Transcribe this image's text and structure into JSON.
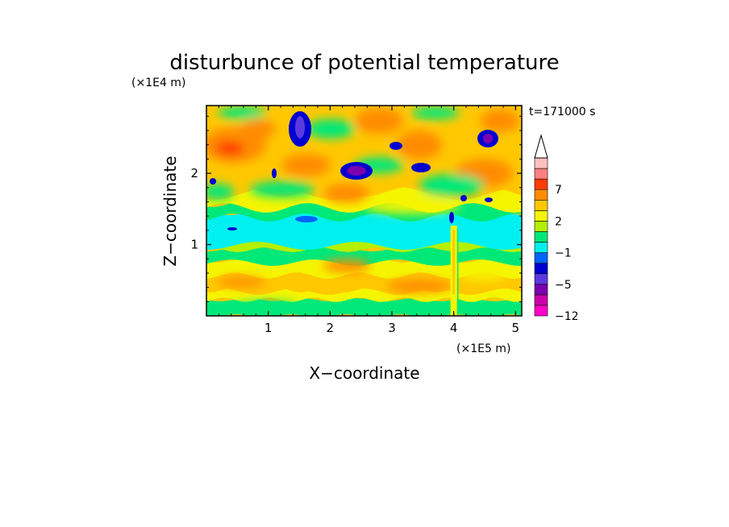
{
  "chart_data": {
    "type": "heatmap",
    "title": "disturbunce of potential temperature",
    "time_label": "t=171000 s",
    "xlabel": "X−coordinate",
    "ylabel": "Z−coordinate",
    "x_unit": "(×1E5 m)",
    "y_unit": "(×1E4 m)",
    "xlim": [
      0.0,
      5.1
    ],
    "ylim": [
      0.0,
      2.95
    ],
    "x_ticks": [
      1,
      2,
      3,
      4,
      5
    ],
    "y_ticks": [
      1,
      2
    ],
    "x_tick_labels": [
      "1",
      "2",
      "3",
      "4",
      "5"
    ],
    "y_tick_labels": [
      "1",
      "2"
    ],
    "colorbar": {
      "levels": [
        -12,
        -10,
        -8,
        -5,
        -4,
        -3,
        -1,
        0,
        1,
        2,
        3,
        5,
        7,
        9,
        11
      ],
      "colors": [
        "#ff00c8",
        "#cc00aa",
        "#7a00b0",
        "#5a3ae0",
        "#0000d0",
        "#0064ff",
        "#00f0f0",
        "#00e878",
        "#b4f000",
        "#f5f500",
        "#ffc800",
        "#ff8c00",
        "#ff3c00",
        "#ff8080",
        "#ffc0c0"
      ],
      "extend_top": "#ffffff",
      "labeled_levels": [
        {
          "value": 7,
          "label": "7"
        },
        {
          "value": 2,
          "label": "2"
        },
        {
          "value": -1,
          "label": "−1"
        },
        {
          "value": -5,
          "label": "−5"
        },
        {
          "value": -12,
          "label": "−12"
        }
      ]
    }
  }
}
